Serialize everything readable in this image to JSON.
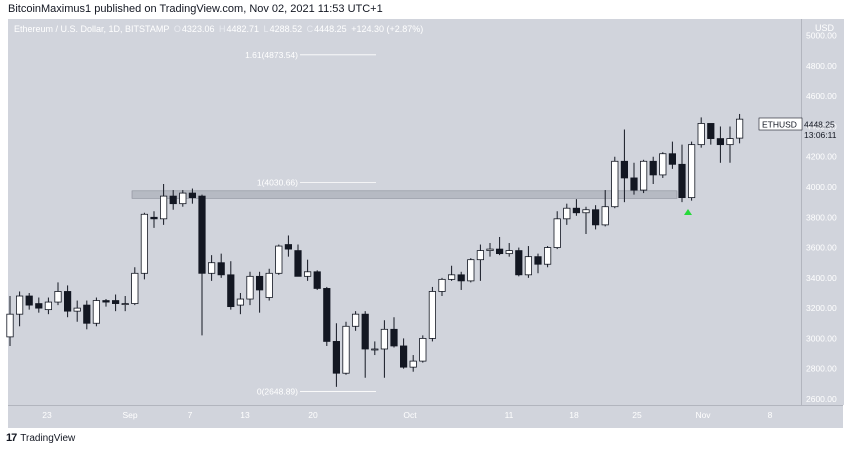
{
  "header": {
    "publish_line": "BitcoinMaximus1 published on TradingView.com, Nov 02, 2021 11:53 UTC+1"
  },
  "symbol": {
    "name": "Ethereum / U.S. Dollar, 1D, BITSTAMP",
    "open_label": "O",
    "open": "4323.06",
    "high_label": "H",
    "high": "4482.71",
    "low_label": "L",
    "low": "4288.52",
    "close_label": "C",
    "close": "4448.25",
    "change": "+124.30 (+2.87%)"
  },
  "price_axis": {
    "currency": "USD",
    "ticks": [
      "5000.00",
      "4800.00",
      "4600.00",
      "4400.00",
      "4200.00",
      "4000.00",
      "3800.00",
      "3600.00",
      "3400.00",
      "3200.00",
      "3000.00",
      "2800.00",
      "2600.00"
    ],
    "last_label": "ETHUSD",
    "last_price": "4448.25",
    "countdown": "13:06:11"
  },
  "time_axis": {
    "ticks": [
      "23",
      "Sep",
      "7",
      "13",
      "20",
      "Oct",
      "11",
      "18",
      "25",
      "Nov",
      "8"
    ]
  },
  "footer": {
    "logo": "17",
    "brand": "TradingView"
  },
  "colors": {
    "background": "#d1d4dc",
    "up_candle": "#ffffff",
    "down_candle": "#131722",
    "support_band": "#b2b5be",
    "marker": "#26d93a"
  },
  "chart_data": {
    "type": "candlestick",
    "title": "Ethereum / U.S. Dollar, 1D, BITSTAMP",
    "ylim": [
      2560,
      5110
    ],
    "fib_levels": [
      {
        "label": "1.61(4873.54)",
        "value": 4873.54
      },
      {
        "label": "1(4030.66)",
        "value": 4030.66
      },
      {
        "label": "0(2648.89)",
        "value": 2648.89
      }
    ],
    "support_zone": [
      3925,
      3975
    ],
    "candles": [
      {
        "date": "2021-08-18",
        "o": 3010,
        "h": 3280,
        "l": 2950,
        "c": 3160
      },
      {
        "date": "2021-08-19",
        "o": 3160,
        "h": 3310,
        "l": 3080,
        "c": 3280
      },
      {
        "date": "2021-08-20",
        "o": 3280,
        "h": 3300,
        "l": 3190,
        "c": 3220
      },
      {
        "date": "2021-08-21",
        "o": 3230,
        "h": 3270,
        "l": 3170,
        "c": 3200
      },
      {
        "date": "2021-08-22",
        "o": 3190,
        "h": 3270,
        "l": 3160,
        "c": 3240
      },
      {
        "date": "2021-08-23",
        "o": 3240,
        "h": 3370,
        "l": 3220,
        "c": 3310
      },
      {
        "date": "2021-08-24",
        "o": 3310,
        "h": 3350,
        "l": 3140,
        "c": 3180
      },
      {
        "date": "2021-08-25",
        "o": 3180,
        "h": 3250,
        "l": 3110,
        "c": 3200
      },
      {
        "date": "2021-08-26",
        "o": 3220,
        "h": 3250,
        "l": 3060,
        "c": 3100
      },
      {
        "date": "2021-08-27",
        "o": 3100,
        "h": 3270,
        "l": 3080,
        "c": 3250
      },
      {
        "date": "2021-08-28",
        "o": 3250,
        "h": 3260,
        "l": 3210,
        "c": 3240
      },
      {
        "date": "2021-08-29",
        "o": 3250,
        "h": 3290,
        "l": 3180,
        "c": 3230
      },
      {
        "date": "2021-08-30",
        "o": 3230,
        "h": 3280,
        "l": 3180,
        "c": 3230
      },
      {
        "date": "2021-08-31",
        "o": 3230,
        "h": 3470,
        "l": 3220,
        "c": 3430
      },
      {
        "date": "2021-09-01",
        "o": 3430,
        "h": 3830,
        "l": 3390,
        "c": 3820
      },
      {
        "date": "2021-09-02",
        "o": 3800,
        "h": 3840,
        "l": 3730,
        "c": 3790
      },
      {
        "date": "2021-09-03",
        "o": 3790,
        "h": 4020,
        "l": 3750,
        "c": 3940
      },
      {
        "date": "2021-09-04",
        "o": 3940,
        "h": 3980,
        "l": 3850,
        "c": 3890
      },
      {
        "date": "2021-09-05",
        "o": 3890,
        "h": 3980,
        "l": 3870,
        "c": 3960
      },
      {
        "date": "2021-09-06",
        "o": 3960,
        "h": 3990,
        "l": 3890,
        "c": 3930
      },
      {
        "date": "2021-09-07",
        "o": 3940,
        "h": 3950,
        "l": 3020,
        "c": 3430
      },
      {
        "date": "2021-09-08",
        "o": 3430,
        "h": 3550,
        "l": 3380,
        "c": 3500
      },
      {
        "date": "2021-09-09",
        "o": 3500,
        "h": 3560,
        "l": 3400,
        "c": 3420
      },
      {
        "date": "2021-09-10",
        "o": 3420,
        "h": 3510,
        "l": 3190,
        "c": 3210
      },
      {
        "date": "2021-09-11",
        "o": 3220,
        "h": 3300,
        "l": 3160,
        "c": 3260
      },
      {
        "date": "2021-09-12",
        "o": 3260,
        "h": 3440,
        "l": 3220,
        "c": 3410
      },
      {
        "date": "2021-09-13",
        "o": 3410,
        "h": 3440,
        "l": 3170,
        "c": 3320
      },
      {
        "date": "2021-09-14",
        "o": 3270,
        "h": 3460,
        "l": 3250,
        "c": 3430
      },
      {
        "date": "2021-09-15",
        "o": 3430,
        "h": 3620,
        "l": 3420,
        "c": 3610
      },
      {
        "date": "2021-09-16",
        "o": 3620,
        "h": 3680,
        "l": 3540,
        "c": 3590
      },
      {
        "date": "2021-09-17",
        "o": 3580,
        "h": 3620,
        "l": 3420,
        "c": 3410
      },
      {
        "date": "2021-09-18",
        "o": 3410,
        "h": 3520,
        "l": 3380,
        "c": 3440
      },
      {
        "date": "2021-09-19",
        "o": 3440,
        "h": 3450,
        "l": 3320,
        "c": 3330
      },
      {
        "date": "2021-09-20",
        "o": 3330,
        "h": 3340,
        "l": 2950,
        "c": 2980
      },
      {
        "date": "2021-09-21",
        "o": 2980,
        "h": 3100,
        "l": 2680,
        "c": 2770
      },
      {
        "date": "2021-09-22",
        "o": 2770,
        "h": 3110,
        "l": 2760,
        "c": 3080
      },
      {
        "date": "2021-09-23",
        "o": 3080,
        "h": 3180,
        "l": 3050,
        "c": 3160
      },
      {
        "date": "2021-09-24",
        "o": 3160,
        "h": 3180,
        "l": 2740,
        "c": 2930
      },
      {
        "date": "2021-09-25",
        "o": 2930,
        "h": 2980,
        "l": 2890,
        "c": 2930
      },
      {
        "date": "2021-09-26",
        "o": 2930,
        "h": 3120,
        "l": 2740,
        "c": 3060
      },
      {
        "date": "2021-09-27",
        "o": 3060,
        "h": 3140,
        "l": 2940,
        "c": 2950
      },
      {
        "date": "2021-09-28",
        "o": 2950,
        "h": 3000,
        "l": 2800,
        "c": 2810
      },
      {
        "date": "2021-09-29",
        "o": 2810,
        "h": 2890,
        "l": 2780,
        "c": 2850
      },
      {
        "date": "2021-09-30",
        "o": 2850,
        "h": 3020,
        "l": 2840,
        "c": 3000
      },
      {
        "date": "2021-10-01",
        "o": 3000,
        "h": 3340,
        "l": 2980,
        "c": 3310
      },
      {
        "date": "2021-10-02",
        "o": 3310,
        "h": 3400,
        "l": 3280,
        "c": 3390
      },
      {
        "date": "2021-10-03",
        "o": 3390,
        "h": 3480,
        "l": 3380,
        "c": 3420
      },
      {
        "date": "2021-10-04",
        "o": 3420,
        "h": 3440,
        "l": 3320,
        "c": 3380
      },
      {
        "date": "2021-10-05",
        "o": 3380,
        "h": 3530,
        "l": 3370,
        "c": 3520
      },
      {
        "date": "2021-10-06",
        "o": 3520,
        "h": 3620,
        "l": 3380,
        "c": 3580
      },
      {
        "date": "2021-10-07",
        "o": 3580,
        "h": 3630,
        "l": 3540,
        "c": 3590
      },
      {
        "date": "2021-10-08",
        "o": 3590,
        "h": 3670,
        "l": 3550,
        "c": 3560
      },
      {
        "date": "2021-10-09",
        "o": 3560,
        "h": 3630,
        "l": 3540,
        "c": 3580
      },
      {
        "date": "2021-10-10",
        "o": 3580,
        "h": 3600,
        "l": 3410,
        "c": 3420
      },
      {
        "date": "2021-10-11",
        "o": 3420,
        "h": 3610,
        "l": 3400,
        "c": 3540
      },
      {
        "date": "2021-10-12",
        "o": 3540,
        "h": 3560,
        "l": 3430,
        "c": 3490
      },
      {
        "date": "2021-10-13",
        "o": 3490,
        "h": 3610,
        "l": 3470,
        "c": 3600
      },
      {
        "date": "2021-10-14",
        "o": 3600,
        "h": 3840,
        "l": 3590,
        "c": 3790
      },
      {
        "date": "2021-10-15",
        "o": 3790,
        "h": 3890,
        "l": 3750,
        "c": 3860
      },
      {
        "date": "2021-10-16",
        "o": 3860,
        "h": 3920,
        "l": 3810,
        "c": 3830
      },
      {
        "date": "2021-10-17",
        "o": 3830,
        "h": 3870,
        "l": 3690,
        "c": 3850
      },
      {
        "date": "2021-10-18",
        "o": 3850,
        "h": 3880,
        "l": 3720,
        "c": 3750
      },
      {
        "date": "2021-10-19",
        "o": 3750,
        "h": 3980,
        "l": 3740,
        "c": 3870
      },
      {
        "date": "2021-10-20",
        "o": 3870,
        "h": 4200,
        "l": 3860,
        "c": 4170
      },
      {
        "date": "2021-10-21",
        "o": 4170,
        "h": 4380,
        "l": 3900,
        "c": 4060
      },
      {
        "date": "2021-10-22",
        "o": 4060,
        "h": 4160,
        "l": 3950,
        "c": 3980
      },
      {
        "date": "2021-10-23",
        "o": 3980,
        "h": 4180,
        "l": 3960,
        "c": 4170
      },
      {
        "date": "2021-10-24",
        "o": 4170,
        "h": 4200,
        "l": 4020,
        "c": 4080
      },
      {
        "date": "2021-10-25",
        "o": 4080,
        "h": 4230,
        "l": 4060,
        "c": 4220
      },
      {
        "date": "2021-10-26",
        "o": 4220,
        "h": 4300,
        "l": 4120,
        "c": 4150
      },
      {
        "date": "2021-10-27",
        "o": 4150,
        "h": 4280,
        "l": 3900,
        "c": 3930
      },
      {
        "date": "2021-10-28",
        "o": 3930,
        "h": 4300,
        "l": 3910,
        "c": 4280
      },
      {
        "date": "2021-10-29",
        "o": 4280,
        "h": 4460,
        "l": 4260,
        "c": 4420
      },
      {
        "date": "2021-10-30",
        "o": 4420,
        "h": 4420,
        "l": 4280,
        "c": 4320
      },
      {
        "date": "2021-10-31",
        "o": 4320,
        "h": 4400,
        "l": 4160,
        "c": 4280
      },
      {
        "date": "2021-11-01",
        "o": 4280,
        "h": 4400,
        "l": 4160,
        "c": 4320
      },
      {
        "date": "2021-11-02",
        "o": 4323.06,
        "h": 4482.71,
        "l": 4288.52,
        "c": 4448.25
      }
    ]
  }
}
